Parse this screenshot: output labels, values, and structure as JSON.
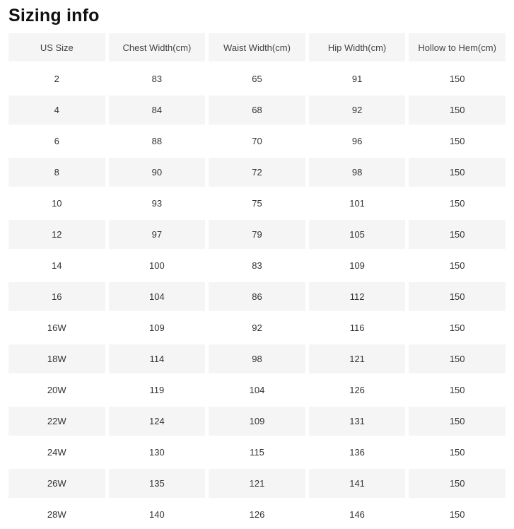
{
  "page": {
    "title": "Sizing info"
  },
  "table": {
    "columns": [
      "US Size",
      "Chest Width(cm)",
      "Waist Width(cm)",
      "Hip Width(cm)",
      "Hollow to Hem(cm)"
    ],
    "rows": [
      [
        "2",
        "83",
        "65",
        "91",
        "150"
      ],
      [
        "4",
        "84",
        "68",
        "92",
        "150"
      ],
      [
        "6",
        "88",
        "70",
        "96",
        "150"
      ],
      [
        "8",
        "90",
        "72",
        "98",
        "150"
      ],
      [
        "10",
        "93",
        "75",
        "101",
        "150"
      ],
      [
        "12",
        "97",
        "79",
        "105",
        "150"
      ],
      [
        "14",
        "100",
        "83",
        "109",
        "150"
      ],
      [
        "16",
        "104",
        "86",
        "112",
        "150"
      ],
      [
        "16W",
        "109",
        "92",
        "116",
        "150"
      ],
      [
        "18W",
        "114",
        "98",
        "121",
        "150"
      ],
      [
        "20W",
        "119",
        "104",
        "126",
        "150"
      ],
      [
        "22W",
        "124",
        "109",
        "131",
        "150"
      ],
      [
        "24W",
        "130",
        "115",
        "136",
        "150"
      ],
      [
        "26W",
        "135",
        "121",
        "141",
        "150"
      ],
      [
        "28W",
        "140",
        "126",
        "146",
        "150"
      ]
    ],
    "colors": {
      "stripe": "#f5f5f5",
      "header_text": "#444444",
      "cell_text": "#333333",
      "title_text": "#111111"
    }
  }
}
